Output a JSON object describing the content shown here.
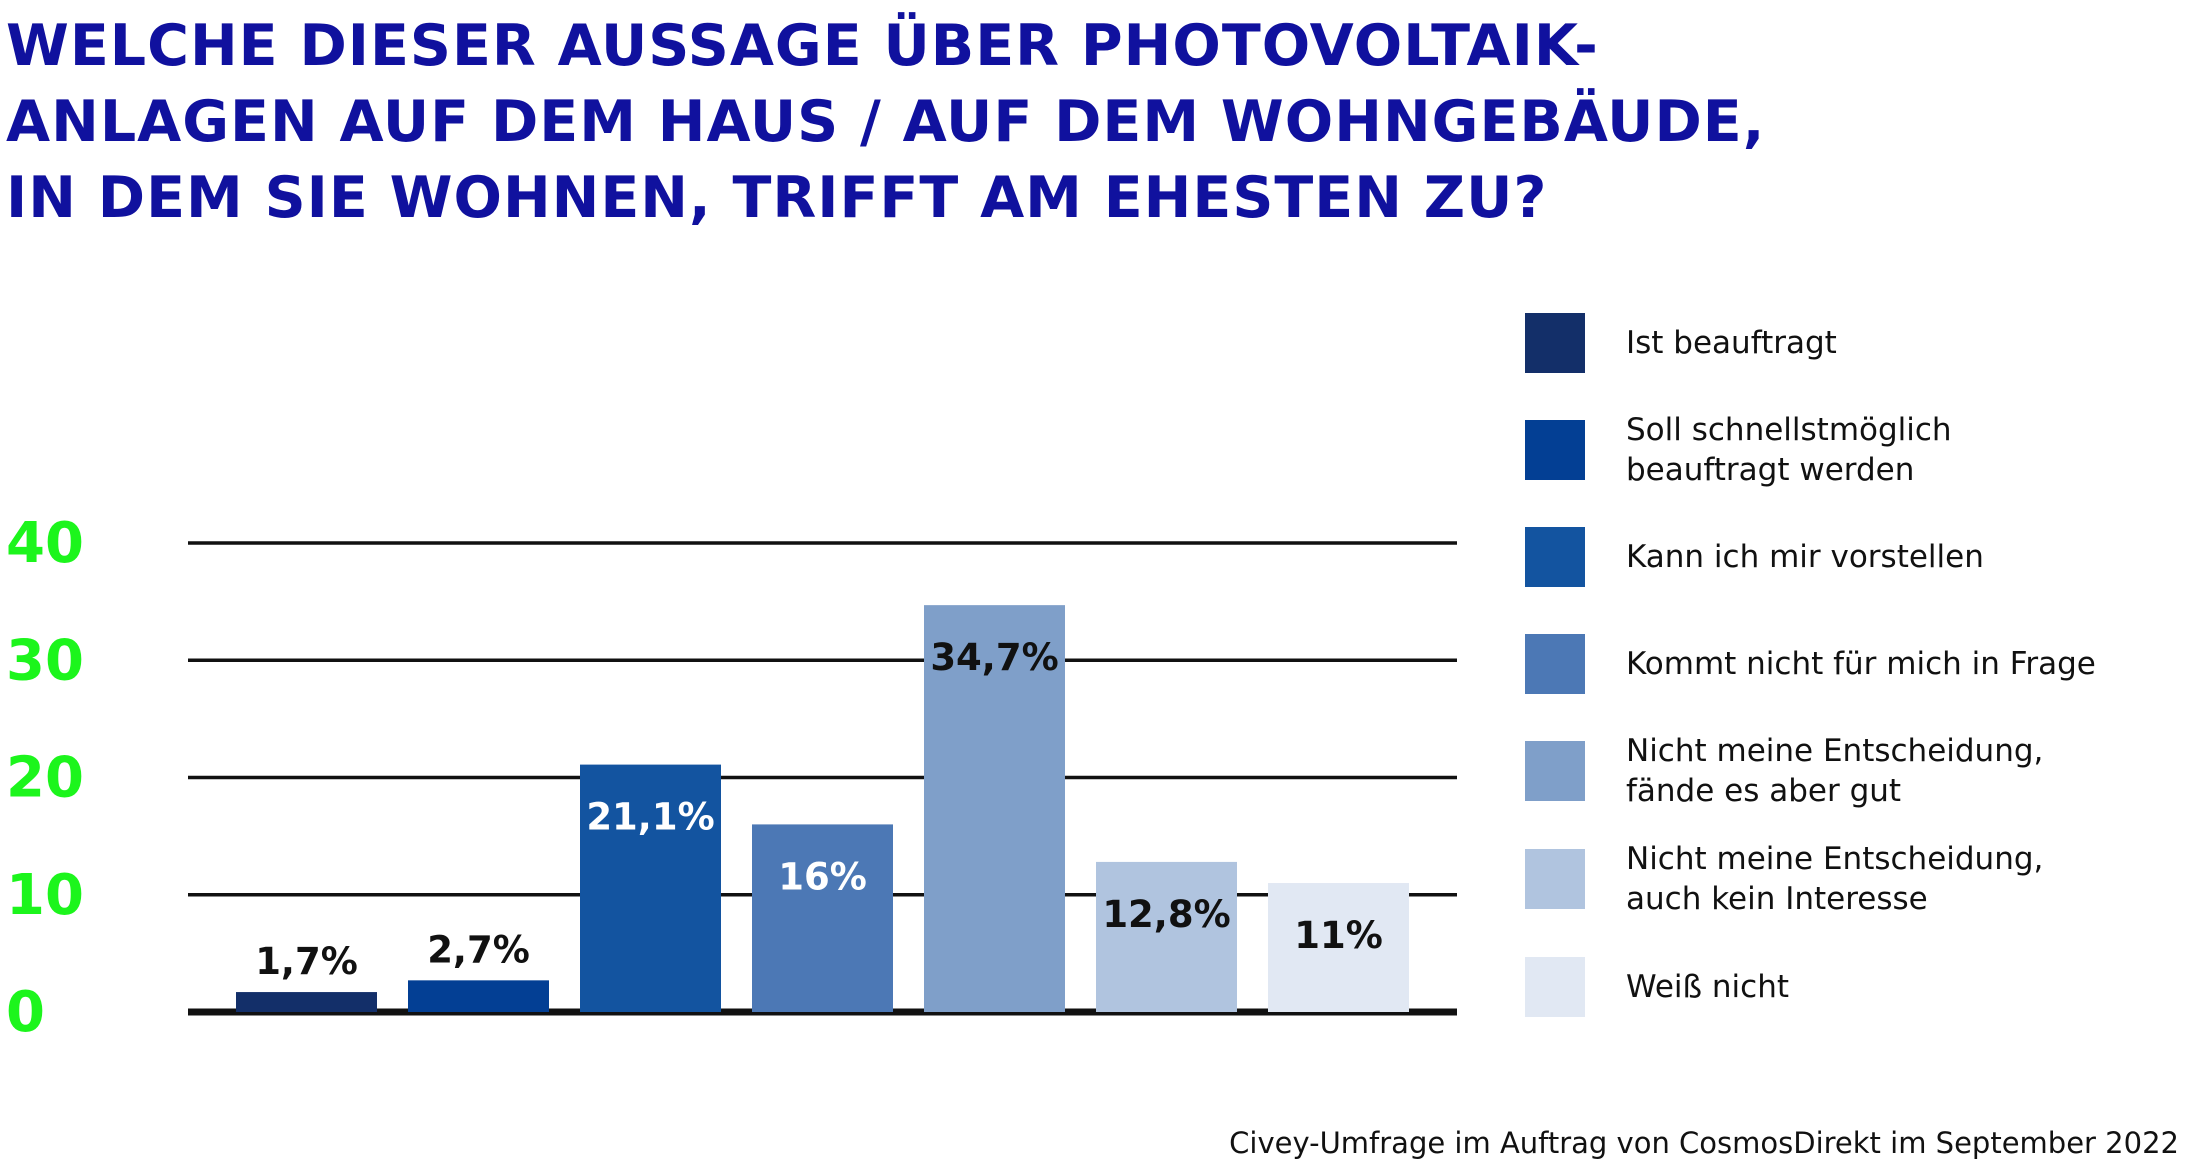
{
  "title": "WELCHE DIESER AUSSAGE ÜBER PHOTOVOLTAIK-\nANLAGEN AUF DEM HAUS / AUF DEM WOHNGEBÄUDE,\nIN DEM SIE WOHNEN, TRIFFT AM EHESTEN ZU?",
  "source": "Civey-Umfrage im Auftrag von CosmosDirekt im September 2022",
  "colors": {
    "title": "#10119e",
    "axis_ticks": "#1cf51c",
    "gridline": "#111111"
  },
  "chart_data": {
    "type": "bar",
    "title": "WELCHE DIESER AUSSAGE ÜBER PHOTOVOLTAIK-ANLAGEN AUF DEM HAUS / AUF DEM WOHNGEBÄUDE, IN DEM SIE WOHNEN, TRIFFT AM EHESTEN ZU?",
    "xlabel": "",
    "ylabel": "",
    "ylim": [
      0,
      40
    ],
    "yticks": [
      0,
      10,
      20,
      30,
      40
    ],
    "grid": true,
    "legend_position": "right",
    "categories": [
      "Ist beauftragt",
      "Soll schnellstmöglich\nbeauftragt werden",
      "Kann ich mir vorstellen",
      "Kommt nicht für mich in Frage",
      "Nicht meine Entscheidung,\nfände es aber gut",
      "Nicht meine Entscheidung,\nauch kein Interesse",
      "Weiß nicht"
    ],
    "values": [
      1.7,
      2.7,
      21.1,
      16,
      34.7,
      12.8,
      11
    ],
    "value_labels": [
      "1,7%",
      "2,7%",
      "21,1%",
      "16%",
      "34,7%",
      "12,8%",
      "11%"
    ],
    "colors": [
      "#132f69",
      "#033f94",
      "#1354a0",
      "#4c78b5",
      "#7f9fc9",
      "#b0c4df",
      "#e1e8f3"
    ],
    "label_colors": [
      "#111111",
      "#111111",
      "#ffffff",
      "#ffffff",
      "#111111",
      "#111111",
      "#111111"
    ],
    "label_position": [
      "above",
      "above",
      "inside",
      "inside",
      "inside",
      "inside",
      "inside"
    ]
  }
}
